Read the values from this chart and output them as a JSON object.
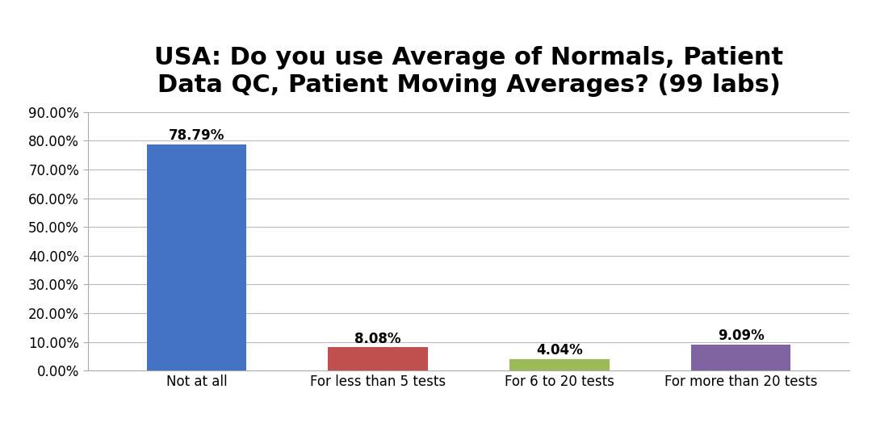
{
  "title": "USA: Do you use Average of Normals, Patient\nData QC, Patient Moving Averages? (99 labs)",
  "categories": [
    "Not at all",
    "For less than 5 tests",
    "For 6 to 20 tests",
    "For more than 20 tests"
  ],
  "values": [
    0.7879,
    0.0808,
    0.0404,
    0.0909
  ],
  "labels": [
    "78.79%",
    "8.08%",
    "4.04%",
    "9.09%"
  ],
  "bar_colors": [
    "#4472C4",
    "#C0504D",
    "#9BBB59",
    "#8064A2"
  ],
  "ylim": [
    0,
    0.9
  ],
  "yticks": [
    0.0,
    0.1,
    0.2,
    0.3,
    0.4,
    0.5,
    0.6,
    0.7,
    0.8,
    0.9
  ],
  "ytick_labels": [
    "0.00%",
    "10.00%",
    "20.00%",
    "30.00%",
    "40.00%",
    "50.00%",
    "60.00%",
    "70.00%",
    "80.00%",
    "90.00%"
  ],
  "background_color": "#FFFFFF",
  "grid_color": "#BBBBBB",
  "title_fontsize": 22,
  "label_fontsize": 12,
  "tick_fontsize": 12,
  "bar_width": 0.55
}
